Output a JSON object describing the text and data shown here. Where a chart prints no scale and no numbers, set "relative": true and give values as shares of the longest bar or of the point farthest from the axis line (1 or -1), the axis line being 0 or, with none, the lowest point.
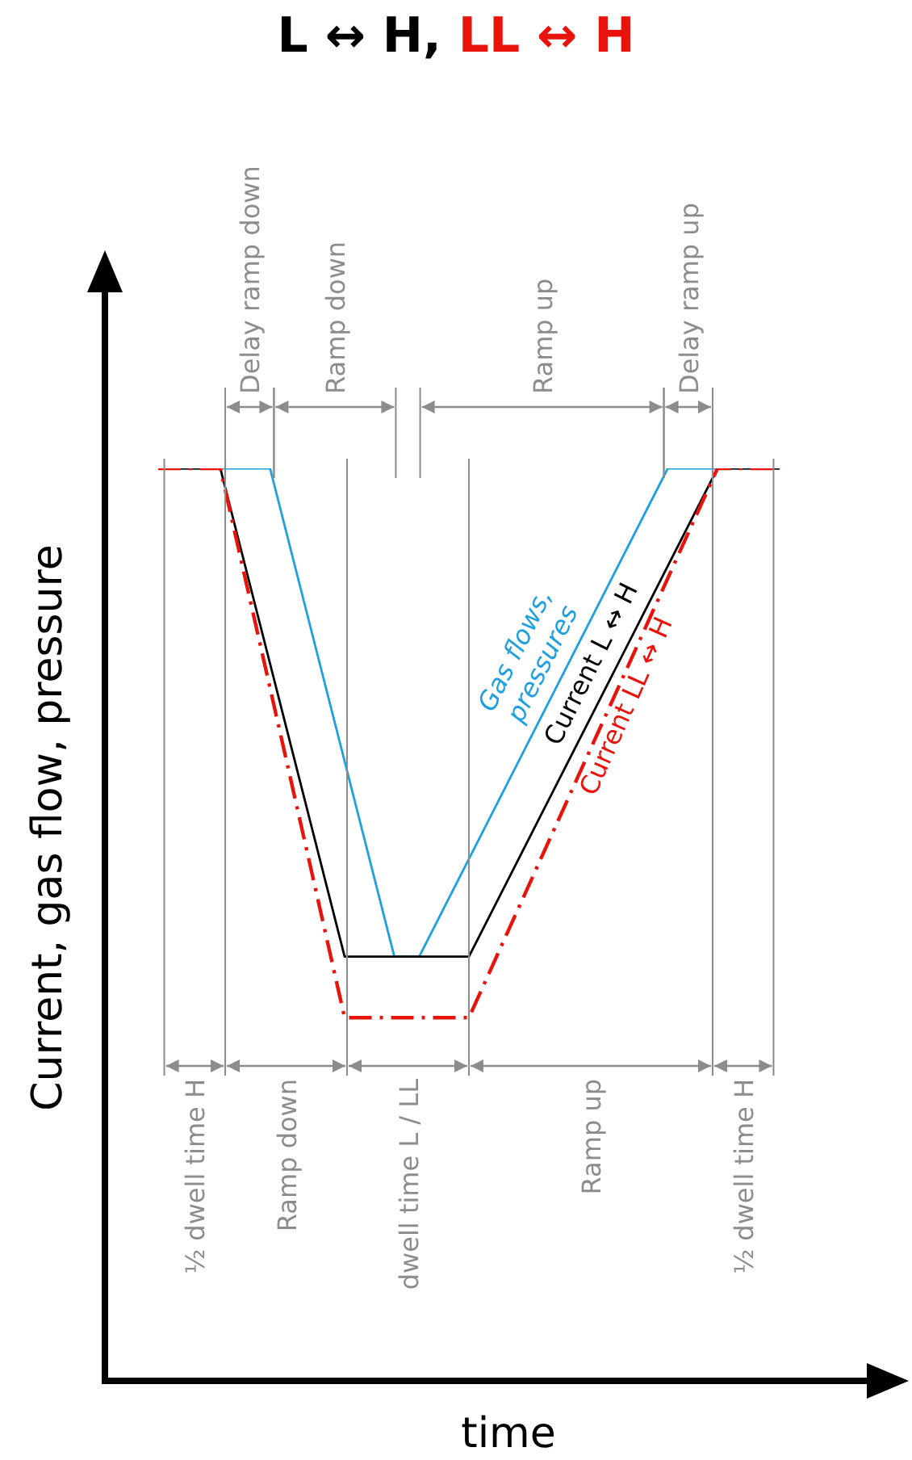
{
  "chart_data": {
    "type": "line",
    "title": "L ↔ H, LL ↔ H",
    "xlabel": "time",
    "ylabel": "Current, gas flow, pressure",
    "relative": true,
    "marker": "none",
    "categories": [
      null,
      null,
      null,
      null,
      null,
      null,
      null,
      null,
      null,
      null,
      null,
      null,
      null,
      null,
      null,
      null,
      null,
      null,
      null,
      null,
      null,
      null,
      null,
      null,
      null,
      null,
      null,
      null,
      null,
      null,
      null,
      null,
      null,
      null,
      null,
      null,
      null,
      null,
      null,
      null,
      null,
      null,
      null,
      null,
      null,
      null,
      null,
      null,
      null,
      null,
      null
    ],
    "series": [
      {
        "name": "Gas flows, pressures",
        "color": "#1ea0e0",
        "values": [
          1,
          null,
          null,
          null,
          null,
          null,
          null,
          null,
          null,
          1,
          null,
          null,
          null,
          null,
          null,
          null,
          null,
          null,
          null,
          0.465,
          null,
          0.465,
          null,
          null,
          null,
          null,
          null,
          null,
          null,
          null,
          null,
          null,
          null,
          null,
          null,
          null,
          null,
          null,
          null,
          null,
          null,
          1,
          null,
          null,
          null,
          null,
          null,
          null,
          null,
          null,
          1
        ]
      },
      {
        "name": "Current L ↔ H",
        "color": "#000000",
        "values": [
          1,
          null,
          null,
          null,
          null,
          1,
          null,
          null,
          null,
          null,
          null,
          null,
          null,
          null,
          null,
          0.465,
          null,
          null,
          null,
          null,
          null,
          null,
          null,
          null,
          null,
          0.465,
          null,
          null,
          null,
          null,
          null,
          null,
          null,
          null,
          null,
          null,
          null,
          null,
          null,
          null,
          null,
          null,
          null,
          null,
          null,
          1,
          null,
          null,
          null,
          null,
          1
        ]
      },
      {
        "name": "Current LL ↔ H",
        "color": "#e8140c",
        "line_style": "dashed",
        "values": [
          1,
          null,
          null,
          null,
          null,
          1,
          null,
          null,
          null,
          null,
          null,
          null,
          null,
          null,
          null,
          0.398,
          null,
          null,
          null,
          null,
          null,
          null,
          null,
          null,
          null,
          0.398,
          null,
          null,
          null,
          null,
          null,
          null,
          null,
          null,
          null,
          null,
          null,
          null,
          null,
          null,
          null,
          null,
          null,
          null,
          null,
          1,
          null,
          null,
          null,
          null,
          1
        ]
      }
    ],
    "annotations": [
      "Delay ramp down",
      "Ramp down",
      "Ramp up",
      "Delay ramp up",
      "½ dwell time H",
      "Ramp down",
      "dwell time L / LL",
      "Ramp up",
      "½ dwell time H"
    ]
  }
}
